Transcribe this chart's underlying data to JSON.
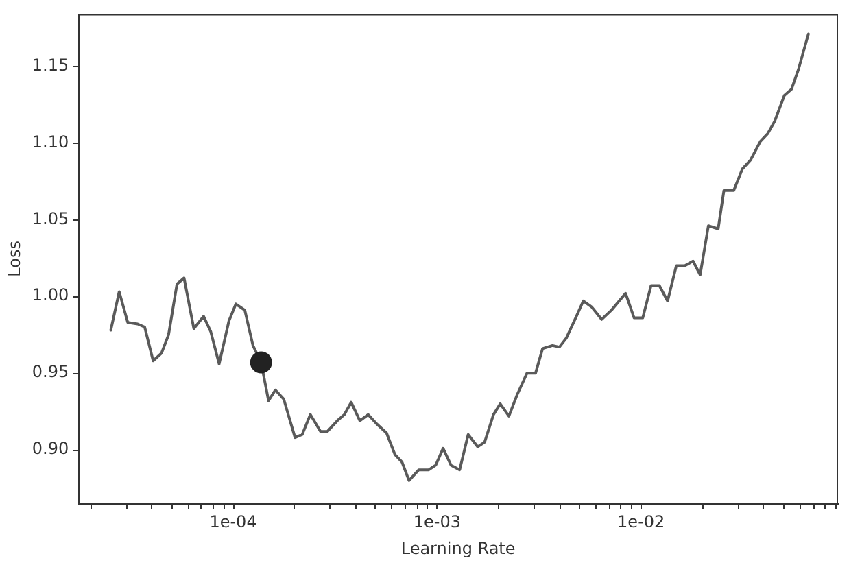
{
  "chart_data": {
    "type": "line",
    "xlabel": "Learning Rate",
    "ylabel": "Loss",
    "log": "x",
    "grid": false,
    "legend": false,
    "marker": "none",
    "line_style": "solid",
    "xlim": [
      1.74e-05,
      0.0925
    ],
    "ylim": [
      0.865,
      1.184
    ],
    "xticks": [
      {
        "value": 2e-05,
        "label": null
      },
      {
        "value": 3e-05,
        "label": null
      },
      {
        "value": 4e-05,
        "label": null
      },
      {
        "value": 5e-05,
        "label": null
      },
      {
        "value": 6e-05,
        "label": null
      },
      {
        "value": 7e-05,
        "label": null
      },
      {
        "value": 8e-05,
        "label": null
      },
      {
        "value": 9e-05,
        "label": null
      },
      {
        "value": 0.0001,
        "label": "1e-04"
      },
      {
        "value": 0.0002,
        "label": null
      },
      {
        "value": 0.0003,
        "label": null
      },
      {
        "value": 0.0004,
        "label": null
      },
      {
        "value": 0.0005,
        "label": null
      },
      {
        "value": 0.0006,
        "label": null
      },
      {
        "value": 0.0007,
        "label": null
      },
      {
        "value": 0.0008,
        "label": null
      },
      {
        "value": 0.0009,
        "label": null
      },
      {
        "value": 0.001,
        "label": "1e-03"
      },
      {
        "value": 0.002,
        "label": null
      },
      {
        "value": 0.003,
        "label": null
      },
      {
        "value": 0.004,
        "label": null
      },
      {
        "value": 0.005,
        "label": null
      },
      {
        "value": 0.006,
        "label": null
      },
      {
        "value": 0.007,
        "label": null
      },
      {
        "value": 0.008,
        "label": null
      },
      {
        "value": 0.009,
        "label": null
      },
      {
        "value": 0.01,
        "label": "1e-02"
      },
      {
        "value": 0.02,
        "label": null
      },
      {
        "value": 0.03,
        "label": null
      },
      {
        "value": 0.04,
        "label": null
      },
      {
        "value": 0.05,
        "label": null
      },
      {
        "value": 0.06,
        "label": null
      },
      {
        "value": 0.07,
        "label": null
      },
      {
        "value": 0.08,
        "label": null
      },
      {
        "value": 0.09,
        "label": null
      }
    ],
    "yticks": [
      {
        "value": 0.9,
        "label": "0.90"
      },
      0.95,
      {
        "value": 1.0,
        "label": "1.00"
      },
      1.05,
      {
        "value": 1.1,
        "label": "1.10"
      },
      1.15
    ],
    "series": [
      {
        "color": "#5a5a5a",
        "x": [
          2.51e-05,
          2.76e-05,
          3.04e-05,
          3.4e-05,
          3.68e-05,
          4.05e-05,
          4.45e-05,
          4.82e-05,
          5.3e-05,
          5.74e-05,
          6.41e-05,
          7.16e-05,
          7.76e-05,
          8.53e-05,
          9.53e-05,
          0.000103,
          0.000114,
          0.000125,
          0.000137,
          0.000149,
          0.000161,
          0.000177,
          0.000201,
          0.000218,
          0.000239,
          0.000268,
          0.00029,
          0.000324,
          0.000351,
          0.000379,
          0.000418,
          0.000459,
          0.000505,
          0.000565,
          0.000621,
          0.000673,
          0.000728,
          0.000813,
          0.00091,
          0.000984,
          0.00107,
          0.00117,
          0.00129,
          0.00142,
          0.00158,
          0.00171,
          0.00189,
          0.00204,
          0.00225,
          0.00247,
          0.00276,
          0.00304,
          0.00329,
          0.00368,
          0.00398,
          0.00431,
          0.00482,
          0.00521,
          0.00574,
          0.00641,
          0.00716,
          0.0084,
          0.00925,
          0.0102,
          0.0112,
          0.0123,
          0.0135,
          0.0149,
          0.0164,
          0.018,
          0.0195,
          0.0214,
          0.0239,
          0.0255,
          0.0285,
          0.0314,
          0.0345,
          0.0385,
          0.0418,
          0.0452,
          0.0505,
          0.0547,
          0.0592,
          0.0662
        ],
        "values": [
          0.978,
          1.003,
          0.983,
          0.982,
          0.98,
          0.958,
          0.963,
          0.975,
          1.008,
          1.012,
          0.979,
          0.987,
          0.977,
          0.956,
          0.984,
          0.995,
          0.991,
          0.968,
          0.957,
          0.932,
          0.939,
          0.933,
          0.908,
          0.91,
          0.923,
          0.912,
          0.912,
          0.919,
          0.923,
          0.931,
          0.919,
          0.923,
          0.917,
          0.911,
          0.897,
          0.892,
          0.88,
          0.887,
          0.887,
          0.89,
          0.901,
          0.89,
          0.887,
          0.91,
          0.902,
          0.905,
          0.923,
          0.93,
          0.922,
          0.936,
          0.95,
          0.95,
          0.966,
          0.968,
          0.967,
          0.973,
          0.987,
          0.997,
          0.993,
          0.985,
          0.991,
          1.002,
          0.986,
          0.986,
          1.007,
          1.007,
          0.997,
          1.02,
          1.02,
          1.023,
          1.014,
          1.046,
          1.044,
          1.069,
          1.069,
          1.083,
          1.089,
          1.101,
          1.106,
          1.114,
          1.131,
          1.135,
          1.148,
          1.171
        ]
      },
      {
        "type": "scatter",
        "color": "#222222",
        "marker": "circle",
        "x": [
          0.000137
        ],
        "values": [
          0.957
        ]
      }
    ]
  }
}
